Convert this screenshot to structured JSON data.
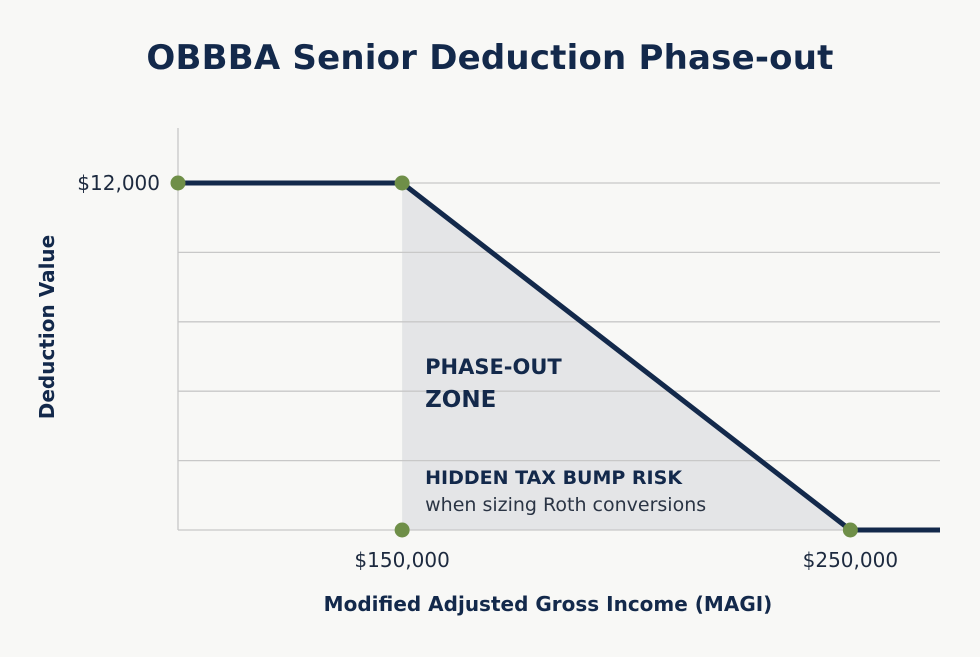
{
  "chart_data": {
    "type": "line",
    "title": "OBBBA Senior Deduction Phase-out",
    "xlabel": "Modified Adjusted Gross Income (MAGI)",
    "ylabel": "Deduction Value",
    "x": [
      100000,
      150000,
      250000,
      270000
    ],
    "series": [
      {
        "values": [
          12000,
          12000,
          0,
          0
        ]
      }
    ],
    "xlim": [
      100000,
      270000
    ],
    "ylim": [
      0,
      12000
    ],
    "x_ticks": [
      150000,
      250000
    ],
    "x_tick_labels": [
      "$150,000",
      "$250,000"
    ],
    "y_ticks": [
      12000
    ],
    "y_tick_labels": [
      "$12,000"
    ],
    "grid": true,
    "marker_points": [
      {
        "x": 100000,
        "y": 12000
      },
      {
        "x": 150000,
        "y": 12000
      },
      {
        "x": 150000,
        "y": 0
      },
      {
        "x": 250000,
        "y": 0
      }
    ],
    "shaded_region": {
      "x_start": 150000,
      "x_end": 250000
    },
    "annotations": {
      "zone_line1": "PHASE-OUT",
      "zone_line2": "ZONE",
      "risk_title": "HIDDEN TAX BUMP RISK",
      "risk_subtitle": "when sizing Roth conversions"
    },
    "colors": {
      "line": "#13294b",
      "marker": "#6f8f48",
      "shade": "#e4e5e7",
      "grid": "#c8c8c8",
      "text": "#13294b"
    }
  }
}
